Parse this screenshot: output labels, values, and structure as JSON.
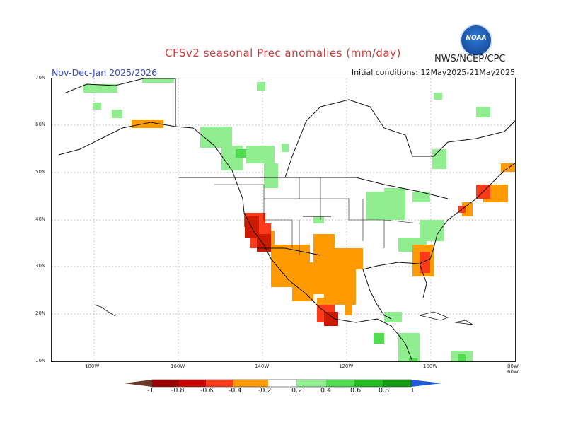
{
  "header": {
    "title": "CFSv2 seasonal Prec anomalies (mm/day)",
    "agency": "NWS/NCEP/CPC",
    "logo_text": "NOAA",
    "season": "Nov-Dec-Jan 2025/2026",
    "initial_conditions": "Initial conditions: 12May2025-21May2025"
  },
  "map": {
    "lat_labels": [
      "70N",
      "60N",
      "50N",
      "40N",
      "30N",
      "20N",
      "10N"
    ],
    "lon_labels": [
      "180W",
      "160W",
      "140W",
      "120W",
      "100W",
      "80W",
      "60W"
    ],
    "gridlines": true
  },
  "colorbar": {
    "labels": [
      "-1",
      "-0.8",
      "-0.6",
      "-0.4",
      "-0.2",
      "0.2",
      "0.4",
      "0.6",
      "0.8",
      "1"
    ],
    "colors": [
      "#6b3a2a",
      "#9b0000",
      "#cc0000",
      "#ff3a1a",
      "#ff9a00",
      "#ffffff",
      "#90ee90",
      "#4fdc4f",
      "#22bb22",
      "#139a13",
      "#1e5adc"
    ]
  },
  "colors": {
    "title": "#d23c3c",
    "season": "#3a4ec8",
    "dry_strong": "#cc1a00",
    "dry_medium": "#ff3a1a",
    "dry_light": "#ff9a00",
    "wet_light": "#90ee90",
    "wet_medium": "#4fdc4f"
  }
}
